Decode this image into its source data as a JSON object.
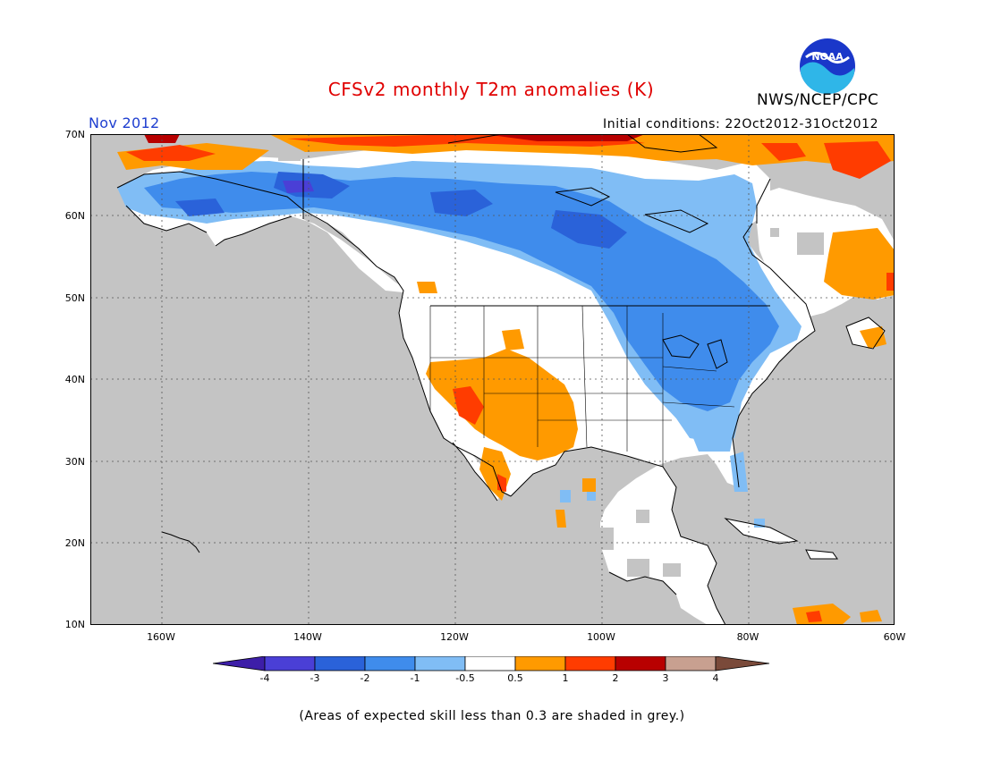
{
  "header": {
    "title": "CFSv2 monthly T2m anomalies (K)",
    "org": "NWS/NCEP/CPC",
    "logo_text": "NOAA",
    "month": "Nov 2012",
    "initial_conditions": "Initial conditions: 22Oct2012-31Oct2012"
  },
  "map": {
    "lat_labels": [
      "70N",
      "60N",
      "50N",
      "40N",
      "30N",
      "20N",
      "10N"
    ],
    "lon_labels": [
      "160W",
      "140W",
      "120W",
      "100W",
      "80W",
      "60W"
    ],
    "lat_range": [
      10,
      70
    ],
    "lon_range": [
      -171,
      -60
    ],
    "ocean_color": "#c4c4c4",
    "land_color": "#ffffff"
  },
  "colorbar": {
    "labels": [
      "-4",
      "-3",
      "-2",
      "-1",
      "-0.5",
      "0.5",
      "1",
      "2",
      "3",
      "4"
    ],
    "colors": [
      "#3d1ea8",
      "#4a3fd6",
      "#2a62d9",
      "#3f8cec",
      "#80bdf5",
      "#ffffff",
      "#ff9a00",
      "#ff3c00",
      "#b80000",
      "#c8a090",
      "#7a4a3a"
    ]
  },
  "footnote": "(Areas of expected skill less than 0.3 are shaded in grey.)"
}
